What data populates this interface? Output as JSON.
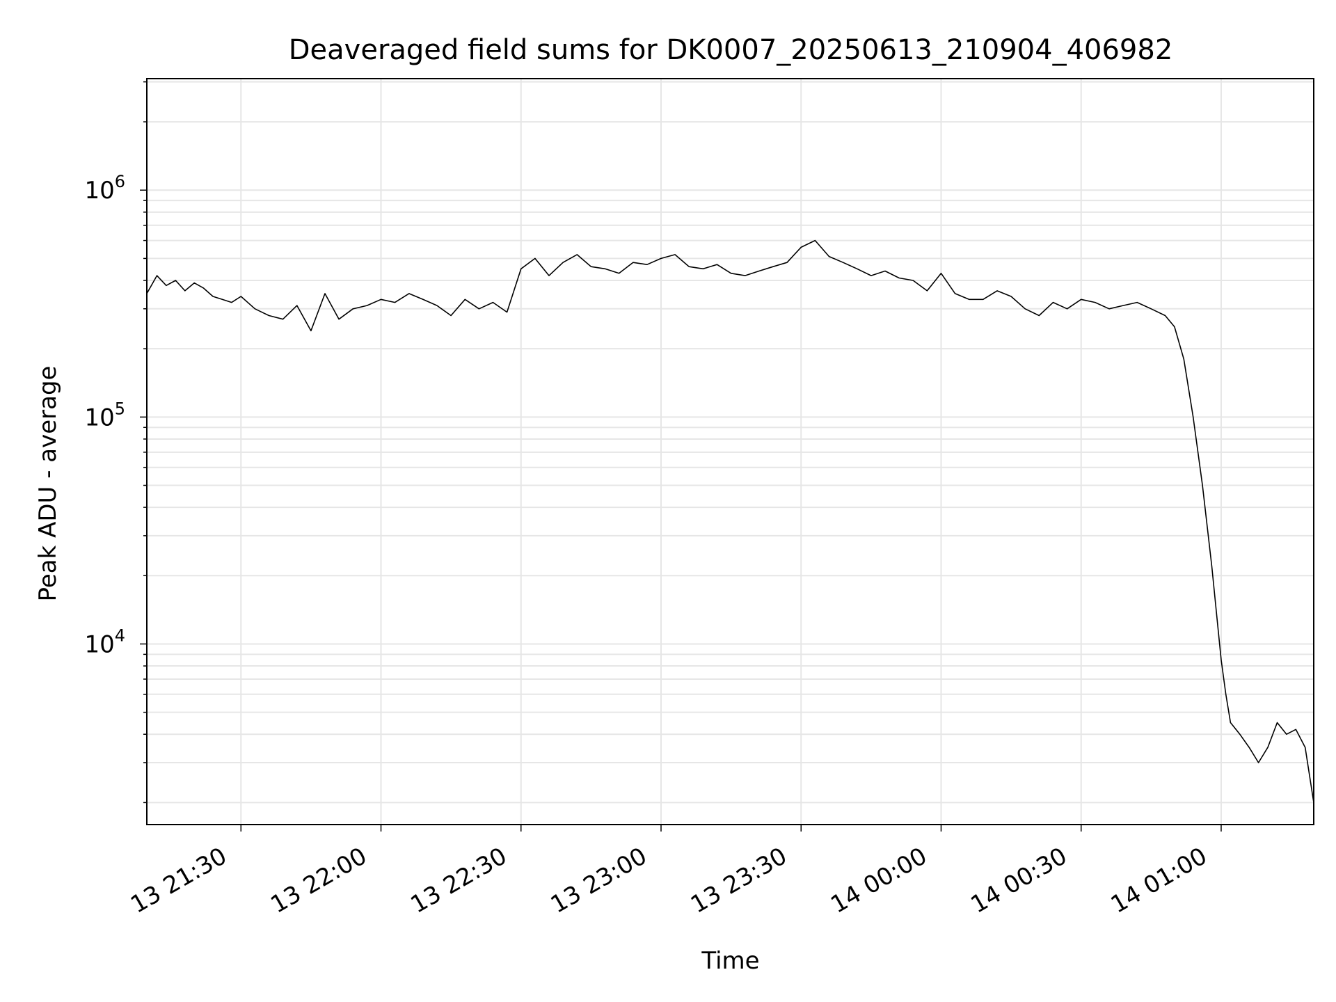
{
  "chart_data": {
    "type": "line",
    "title": "Deaveraged field sums for DK0007_20250613_210904_406982",
    "xlabel": "Time",
    "ylabel": "Peak ADU - average",
    "yscale": "log",
    "xlim": [
      "2025-06-13T21:09:50",
      "2025-06-14T01:19:50"
    ],
    "ylim": [
      1600,
      3100000
    ],
    "grid": true,
    "line_color": "#000000",
    "grid_color": "#e6e6e6",
    "x_ticks": [
      {
        "value": "2025-06-13T21:30:00",
        "label": "13 21:30"
      },
      {
        "value": "2025-06-13T22:00:00",
        "label": "13 22:00"
      },
      {
        "value": "2025-06-13T22:30:00",
        "label": "13 22:30"
      },
      {
        "value": "2025-06-13T23:00:00",
        "label": "13 23:00"
      },
      {
        "value": "2025-06-13T23:30:00",
        "label": "13 23:30"
      },
      {
        "value": "2025-06-14T00:00:00",
        "label": "14 00:00"
      },
      {
        "value": "2025-06-14T00:30:00",
        "label": "14 00:30"
      },
      {
        "value": "2025-06-14T01:00:00",
        "label": "14 01:00"
      }
    ],
    "y_ticks": [
      {
        "value": 10000,
        "base": "10",
        "exp": "4"
      },
      {
        "value": 100000,
        "base": "10",
        "exp": "5"
      },
      {
        "value": 1000000,
        "base": "10",
        "exp": "6"
      }
    ],
    "series": [
      {
        "x": [
          "2025-06-13T21:09:50",
          "2025-06-13T21:12:00",
          "2025-06-13T21:14:00",
          "2025-06-13T21:16:00",
          "2025-06-13T21:18:00",
          "2025-06-13T21:20:00",
          "2025-06-13T21:22:00",
          "2025-06-13T21:24:00",
          "2025-06-13T21:26:00",
          "2025-06-13T21:28:00",
          "2025-06-13T21:30:00",
          "2025-06-13T21:33:00",
          "2025-06-13T21:36:00",
          "2025-06-13T21:39:00",
          "2025-06-13T21:42:00",
          "2025-06-13T21:45:00",
          "2025-06-13T21:48:00",
          "2025-06-13T21:51:00",
          "2025-06-13T21:54:00",
          "2025-06-13T21:57:00",
          "2025-06-13T22:00:00",
          "2025-06-13T22:03:00",
          "2025-06-13T22:06:00",
          "2025-06-13T22:09:00",
          "2025-06-13T22:12:00",
          "2025-06-13T22:15:00",
          "2025-06-13T22:18:00",
          "2025-06-13T22:21:00",
          "2025-06-13T22:24:00",
          "2025-06-13T22:27:00",
          "2025-06-13T22:30:00",
          "2025-06-13T22:33:00",
          "2025-06-13T22:36:00",
          "2025-06-13T22:39:00",
          "2025-06-13T22:42:00",
          "2025-06-13T22:45:00",
          "2025-06-13T22:48:00",
          "2025-06-13T22:51:00",
          "2025-06-13T22:54:00",
          "2025-06-13T22:57:00",
          "2025-06-13T23:00:00",
          "2025-06-13T23:03:00",
          "2025-06-13T23:06:00",
          "2025-06-13T23:09:00",
          "2025-06-13T23:12:00",
          "2025-06-13T23:15:00",
          "2025-06-13T23:18:00",
          "2025-06-13T23:21:00",
          "2025-06-13T23:24:00",
          "2025-06-13T23:27:00",
          "2025-06-13T23:30:00",
          "2025-06-13T23:33:00",
          "2025-06-13T23:36:00",
          "2025-06-13T23:39:00",
          "2025-06-13T23:42:00",
          "2025-06-13T23:45:00",
          "2025-06-13T23:48:00",
          "2025-06-13T23:51:00",
          "2025-06-13T23:54:00",
          "2025-06-13T23:57:00",
          "2025-06-14T00:00:00",
          "2025-06-14T00:03:00",
          "2025-06-14T00:06:00",
          "2025-06-14T00:09:00",
          "2025-06-14T00:12:00",
          "2025-06-14T00:15:00",
          "2025-06-14T00:18:00",
          "2025-06-14T00:21:00",
          "2025-06-14T00:24:00",
          "2025-06-14T00:27:00",
          "2025-06-14T00:30:00",
          "2025-06-14T00:33:00",
          "2025-06-14T00:36:00",
          "2025-06-14T00:39:00",
          "2025-06-14T00:42:00",
          "2025-06-14T00:45:00",
          "2025-06-14T00:48:00",
          "2025-06-14T00:50:00",
          "2025-06-14T00:52:00",
          "2025-06-14T00:54:00",
          "2025-06-14T00:56:00",
          "2025-06-14T00:58:00",
          "2025-06-14T01:00:00",
          "2025-06-14T01:01:00",
          "2025-06-14T01:02:00",
          "2025-06-14T01:04:00",
          "2025-06-14T01:06:00",
          "2025-06-14T01:08:00",
          "2025-06-14T01:10:00",
          "2025-06-14T01:12:00",
          "2025-06-14T01:14:00",
          "2025-06-14T01:16:00",
          "2025-06-14T01:18:00",
          "2025-06-14T01:19:50"
        ],
        "y": [
          350000,
          420000,
          380000,
          400000,
          360000,
          390000,
          370000,
          340000,
          330000,
          320000,
          340000,
          300000,
          280000,
          270000,
          310000,
          240000,
          350000,
          270000,
          300000,
          310000,
          330000,
          320000,
          350000,
          330000,
          310000,
          280000,
          330000,
          300000,
          320000,
          290000,
          450000,
          500000,
          420000,
          480000,
          520000,
          460000,
          450000,
          430000,
          480000,
          470000,
          500000,
          520000,
          460000,
          450000,
          470000,
          430000,
          420000,
          440000,
          460000,
          480000,
          560000,
          600000,
          510000,
          480000,
          450000,
          420000,
          440000,
          410000,
          400000,
          360000,
          430000,
          350000,
          330000,
          330000,
          360000,
          340000,
          300000,
          280000,
          320000,
          300000,
          330000,
          320000,
          300000,
          310000,
          320000,
          300000,
          280000,
          250000,
          180000,
          100000,
          50000,
          22000,
          8500,
          6000,
          4500,
          4000,
          3500,
          3000,
          3500,
          4500,
          4000,
          4200,
          3500,
          2000
        ]
      }
    ]
  }
}
